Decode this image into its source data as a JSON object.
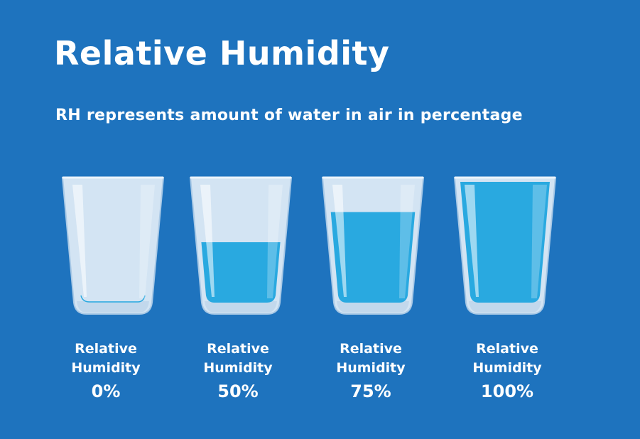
{
  "title": "Relative Humidity",
  "subtitle": "RH represents amount of water in air in percentage",
  "colors": {
    "background": "#1e73be",
    "glass": "#d3e4f3",
    "glass_edge": "#a9c9e6",
    "water": "#29a9e0",
    "text": "#ffffff"
  },
  "glasses": [
    {
      "line1": "Relative",
      "line2": "Humidity",
      "value": "0%",
      "fill": 0
    },
    {
      "line1": "Relative",
      "line2": "Humidity",
      "value": "50%",
      "fill": 0.5
    },
    {
      "line1": "Relative",
      "line2": "Humidity",
      "value": "75%",
      "fill": 0.75
    },
    {
      "line1": "Relative",
      "line2": "Humidity",
      "value": "100%",
      "fill": 1.0
    }
  ]
}
